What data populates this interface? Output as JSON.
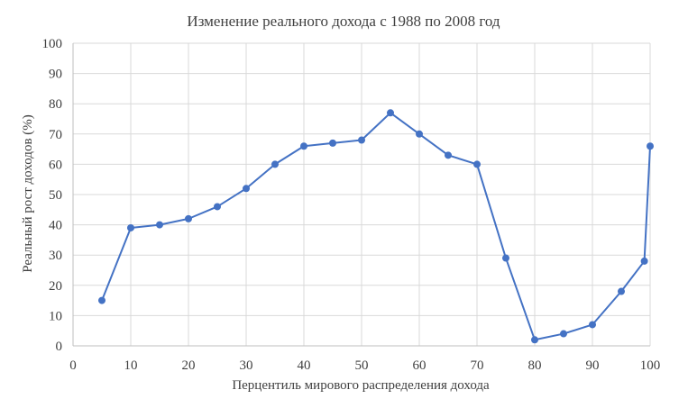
{
  "chart_data": {
    "type": "line",
    "title": "Изменение реального дохода с 1988 по 2008 год",
    "xlabel": "Перцентиль мирового распределения дохода",
    "ylabel": "Реальный рост доходов (%)",
    "xlim": [
      0,
      100
    ],
    "ylim": [
      0,
      100
    ],
    "x_ticks": [
      0,
      10,
      20,
      30,
      40,
      50,
      60,
      70,
      80,
      90,
      100
    ],
    "y_ticks": [
      0,
      10,
      20,
      30,
      40,
      50,
      60,
      70,
      80,
      90,
      100
    ],
    "grid": true,
    "grid_axis": "both",
    "legend": false,
    "series": [
      {
        "color": "#4472c4",
        "marker": "circle",
        "x": [
          5,
          10,
          15,
          20,
          25,
          30,
          35,
          40,
          45,
          50,
          55,
          60,
          65,
          70,
          75,
          80,
          85,
          90,
          95,
          99,
          100
        ],
        "y": [
          15,
          39,
          40,
          42,
          46,
          52,
          60,
          66,
          67,
          68,
          77,
          70,
          63,
          60,
          29,
          2,
          4,
          7,
          18,
          28,
          66
        ]
      }
    ]
  }
}
